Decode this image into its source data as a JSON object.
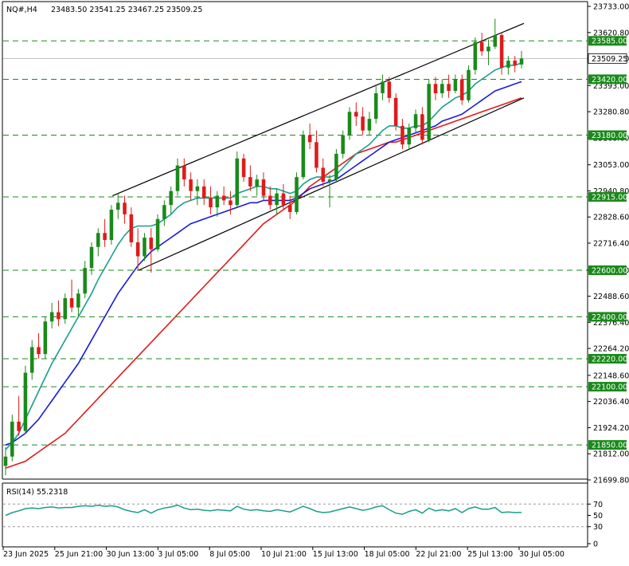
{
  "header": {
    "symbol_text": "NQ#,H4",
    "ohlc_text": "23483.50 23541.25 23467.25 23509.25"
  },
  "colors": {
    "bull": "#1a8a1a",
    "bear": "#e01a1a",
    "sma_fast": "#1a9e8a",
    "sma_mid": "#1a1adc",
    "sma_slow": "#e01a1a",
    "level": "#1a8a1a",
    "rsi": "#1a9e8a",
    "price_tag": "#ffffff"
  },
  "chart_data": [
    {
      "type": "candlestick",
      "symbol": "NQ#",
      "timeframe": "H4",
      "ylim": [
        21699.8,
        23733.0
      ],
      "grid": false,
      "y_ticks": [
        "23733.00",
        "23620.80",
        "23508.60",
        "23393.00",
        "23280.80",
        "23168.60",
        "23053.00",
        "22940.80",
        "22828.60",
        "22716.40",
        "22600.80",
        "22488.60",
        "22376.40",
        "22264.20",
        "22148.60",
        "22036.40",
        "21924.20",
        "21812.00",
        "21699.80"
      ],
      "x_ticks": [
        "23 Jun 2025",
        "25 Jun 21:00",
        "30 Jun 13:00",
        "3 Jul 05:00",
        "8 Jul 05:00",
        "10 Jul 21:00",
        "15 Jul 13:00",
        "18 Jul 05:00",
        "22 Jul 21:00",
        "25 Jul 13:00",
        "30 Jul 05:00"
      ],
      "levels": [
        {
          "value": 23585.0,
          "label": "23585.00"
        },
        {
          "value": 23420.0,
          "label": "23420.00"
        },
        {
          "value": 23180.0,
          "label": "23180.00"
        },
        {
          "value": 22915.0,
          "label": "22915.00"
        },
        {
          "value": 22600.0,
          "label": "22600.00"
        },
        {
          "value": 22400.0,
          "label": "22400.00"
        },
        {
          "value": 22220.0,
          "label": "22220.00"
        },
        {
          "value": 22100.0,
          "label": "22100.00"
        },
        {
          "value": 21850.0,
          "label": "21850.00"
        }
      ],
      "current_price": {
        "value": 23509.25,
        "label": "23509.25"
      },
      "channel": {
        "upper": [
          [
            22920.0,
            0.21
          ],
          [
            23660.0,
            1.0
          ]
        ],
        "lower": [
          [
            22600.0,
            0.26
          ],
          [
            23340.0,
            1.0
          ]
        ]
      },
      "candles": [
        [
          21760,
          21840,
          21720,
          21800
        ],
        [
          21800,
          21980,
          21780,
          21950
        ],
        [
          21950,
          22060,
          21890,
          21910
        ],
        [
          21910,
          22190,
          21900,
          22160
        ],
        [
          22160,
          22300,
          22130,
          22270
        ],
        [
          22270,
          22330,
          22220,
          22240
        ],
        [
          22240,
          22400,
          22220,
          22380
        ],
        [
          22380,
          22460,
          22350,
          22420
        ],
        [
          22420,
          22470,
          22360,
          22390
        ],
        [
          22390,
          22500,
          22370,
          22480
        ],
        [
          22480,
          22560,
          22420,
          22440
        ],
        [
          22440,
          22520,
          22400,
          22500
        ],
        [
          22500,
          22640,
          22480,
          22610
        ],
        [
          22610,
          22720,
          22580,
          22700
        ],
        [
          22700,
          22780,
          22660,
          22760
        ],
        [
          22760,
          22820,
          22700,
          22730
        ],
        [
          22730,
          22880,
          22710,
          22860
        ],
        [
          22860,
          22930,
          22820,
          22890
        ],
        [
          22890,
          22920,
          22800,
          22840
        ],
        [
          22840,
          22870,
          22700,
          22720
        ],
        [
          22720,
          22780,
          22600,
          22660
        ],
        [
          22660,
          22760,
          22640,
          22740
        ],
        [
          22740,
          22780,
          22590,
          22690
        ],
        [
          22690,
          22840,
          22680,
          22820
        ],
        [
          22820,
          22900,
          22790,
          22880
        ],
        [
          22880,
          22960,
          22840,
          22940
        ],
        [
          22940,
          23080,
          22920,
          23050
        ],
        [
          23050,
          23080,
          22960,
          22990
        ],
        [
          22990,
          23020,
          22900,
          22940
        ],
        [
          22940,
          22990,
          22880,
          22960
        ],
        [
          22960,
          22990,
          22880,
          22910
        ],
        [
          22910,
          22960,
          22840,
          22870
        ],
        [
          22870,
          22940,
          22830,
          22920
        ],
        [
          22920,
          22960,
          22880,
          22900
        ],
        [
          22900,
          22940,
          22840,
          22880
        ],
        [
          22880,
          23110,
          22870,
          23080
        ],
        [
          23080,
          23100,
          22980,
          23000
        ],
        [
          23000,
          23050,
          22940,
          22960
        ],
        [
          22960,
          23010,
          22920,
          22990
        ],
        [
          22990,
          23020,
          22900,
          22920
        ],
        [
          22920,
          22960,
          22860,
          22880
        ],
        [
          22880,
          22950,
          22840,
          22930
        ],
        [
          22930,
          22970,
          22860,
          22880
        ],
        [
          22880,
          22920,
          22820,
          22850
        ],
        [
          22850,
          23020,
          22840,
          23000
        ],
        [
          23000,
          23200,
          22990,
          23180
        ],
        [
          23180,
          23230,
          23120,
          23150
        ],
        [
          23150,
          23200,
          23020,
          23040
        ],
        [
          23040,
          23080,
          22960,
          22980
        ],
        [
          22980,
          23010,
          22870,
          22990
        ],
        [
          22990,
          23120,
          22980,
          23100
        ],
        [
          23100,
          23200,
          23080,
          23180
        ],
        [
          23180,
          23300,
          23160,
          23280
        ],
        [
          23280,
          23320,
          23220,
          23260
        ],
        [
          23260,
          23300,
          23180,
          23200
        ],
        [
          23200,
          23280,
          23180,
          23250
        ],
        [
          23250,
          23390,
          23230,
          23360
        ],
        [
          23360,
          23440,
          23330,
          23410
        ],
        [
          23410,
          23430,
          23320,
          23340
        ],
        [
          23340,
          23360,
          23200,
          23220
        ],
        [
          23220,
          23250,
          23120,
          23140
        ],
        [
          23140,
          23230,
          23120,
          23210
        ],
        [
          23210,
          23290,
          23190,
          23270
        ],
        [
          23270,
          23300,
          23140,
          23160
        ],
        [
          23160,
          23420,
          23150,
          23400
        ],
        [
          23400,
          23430,
          23330,
          23360
        ],
        [
          23360,
          23420,
          23340,
          23400
        ],
        [
          23400,
          23440,
          23340,
          23370
        ],
        [
          23370,
          23440,
          23360,
          23420
        ],
        [
          23420,
          23440,
          23310,
          23330
        ],
        [
          23330,
          23480,
          23320,
          23460
        ],
        [
          23460,
          23600,
          23440,
          23580
        ],
        [
          23580,
          23620,
          23520,
          23540
        ],
        [
          23540,
          23590,
          23480,
          23560
        ],
        [
          23560,
          23680,
          23550,
          23610
        ],
        [
          23610,
          23620,
          23440,
          23470
        ],
        [
          23470,
          23520,
          23440,
          23500
        ],
        [
          23500,
          23520,
          23450,
          23480
        ],
        [
          23483.5,
          23541.25,
          23467.25,
          23509.25
        ]
      ],
      "sma_fast": [
        21830,
        21860,
        21900,
        21960,
        22020,
        22080,
        22140,
        22200,
        22250,
        22300,
        22350,
        22400,
        22450,
        22500,
        22560,
        22610,
        22660,
        22710,
        22750,
        22780,
        22790,
        22790,
        22790,
        22800,
        22820,
        22840,
        22870,
        22890,
        22900,
        22910,
        22910,
        22910,
        22910,
        22910,
        22910,
        22930,
        22940,
        22950,
        22960,
        22960,
        22950,
        22950,
        22940,
        22930,
        22940,
        22970,
        22990,
        23000,
        23000,
        23000,
        23010,
        23040,
        23070,
        23100,
        23120,
        23140,
        23170,
        23200,
        23220,
        23220,
        23210,
        23210,
        23220,
        23220,
        23240,
        23270,
        23300,
        23320,
        23340,
        23350,
        23370,
        23400,
        23420,
        23440,
        23460,
        23470,
        23480,
        23480,
        23490
      ],
      "sma_mid": [
        21850,
        21860,
        21880,
        21900,
        21930,
        21960,
        22000,
        22040,
        22080,
        22120,
        22160,
        22200,
        22250,
        22300,
        22350,
        22400,
        22450,
        22500,
        22540,
        22580,
        22620,
        22650,
        22680,
        22700,
        22720,
        22740,
        22760,
        22780,
        22800,
        22810,
        22820,
        22830,
        22840,
        22850,
        22860,
        22870,
        22880,
        22890,
        22890,
        22900,
        22900,
        22900,
        22900,
        22900,
        22910,
        22930,
        22950,
        22960,
        22970,
        22980,
        22990,
        23010,
        23030,
        23050,
        23070,
        23090,
        23110,
        23130,
        23150,
        23160,
        23170,
        23180,
        23190,
        23200,
        23210,
        23220,
        23240,
        23250,
        23260,
        23270,
        23290,
        23310,
        23330,
        23350,
        23370,
        23380,
        23390,
        23400,
        23410
      ],
      "sma_slow": [
        21750,
        21760,
        21770,
        21780,
        21800,
        21820,
        21840,
        21860,
        21880,
        21900,
        21930,
        21960,
        21990,
        22020,
        22050,
        22080,
        22110,
        22140,
        22170,
        22200,
        22230,
        22260,
        22290,
        22320,
        22350,
        22380,
        22410,
        22440,
        22470,
        22500,
        22530,
        22560,
        22590,
        22620,
        22650,
        22680,
        22710,
        22740,
        22770,
        22800,
        22820,
        22840,
        22860,
        22880,
        22900,
        22930,
        22960,
        22980,
        23000,
        23020,
        23040,
        23060,
        23080,
        23100,
        23110,
        23120,
        23130,
        23140,
        23150,
        23150,
        23160,
        23170,
        23180,
        23190,
        23200,
        23210,
        23220,
        23230,
        23240,
        23250,
        23260,
        23270,
        23280,
        23290,
        23300,
        23310,
        23320,
        23330,
        23340
      ],
      "rsi": {
        "label": "RSI(14) 55.2318",
        "ylim": [
          0,
          100
        ],
        "ticks": [
          "70",
          "50",
          "30",
          "0"
        ],
        "levels": [
          70,
          30
        ],
        "values": [
          50,
          55,
          58,
          62,
          63,
          62,
          64,
          65,
          63,
          64,
          64,
          66,
          67,
          66,
          68,
          66,
          67,
          65,
          60,
          57,
          55,
          60,
          54,
          60,
          63,
          65,
          68,
          63,
          60,
          61,
          59,
          58,
          60,
          59,
          58,
          66,
          61,
          59,
          60,
          58,
          57,
          60,
          58,
          56,
          61,
          66,
          62,
          57,
          55,
          56,
          59,
          62,
          65,
          62,
          59,
          61,
          65,
          67,
          60,
          54,
          52,
          57,
          60,
          54,
          63,
          58,
          60,
          58,
          62,
          55,
          62,
          65,
          61,
          61,
          64,
          55,
          56,
          55,
          55.23
        ]
      }
    }
  ]
}
